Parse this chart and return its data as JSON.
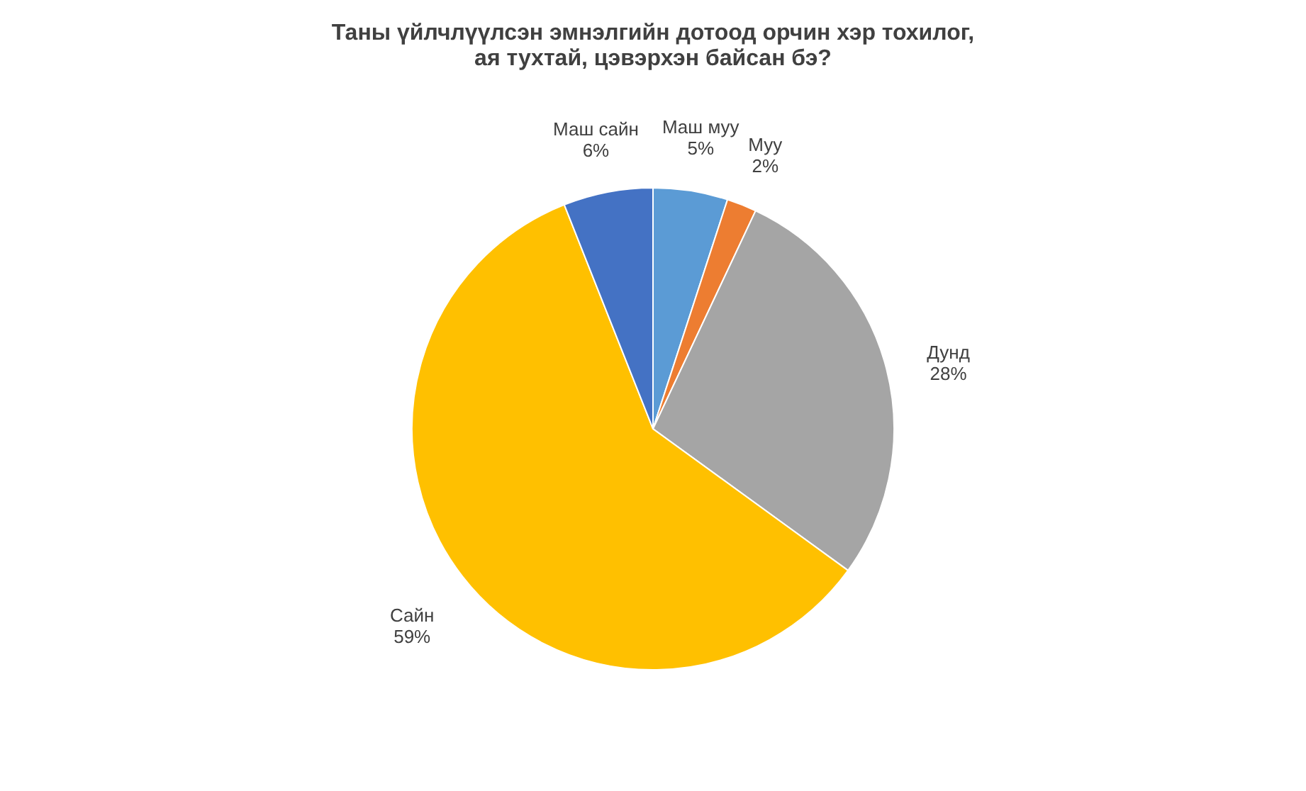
{
  "chart_data": {
    "type": "pie",
    "title": "Таны үйлчлүүлсэн эмнэлгийн дотоод орчин хэр тохилог,\nая тухтай,  цэвэрхэн байсан бэ?",
    "categories": [
      "Маш муу",
      "Муу",
      "Дунд",
      "Сайн",
      "Маш сайн"
    ],
    "values": [
      5,
      2,
      28,
      59,
      6
    ],
    "colors": [
      "#5b9bd5",
      "#ed7d31",
      "#a5a5a5",
      "#ffc000",
      "#4472c4"
    ],
    "value_labels": [
      "5%",
      "2%",
      "28%",
      "59%",
      "6%"
    ],
    "legend": false
  }
}
